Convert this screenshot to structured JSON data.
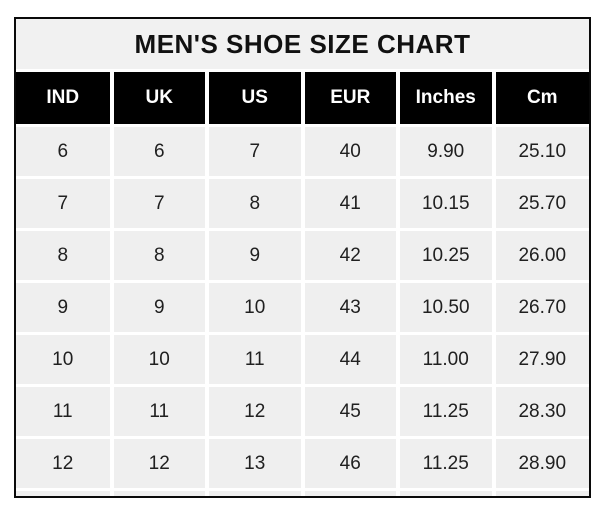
{
  "title": "MEN'S SHOE SIZE CHART",
  "colors": {
    "outer_border": "#0a0a0a",
    "title_bg": "#f1f1f1",
    "header_bg": "#000000",
    "header_text": "#ffffff",
    "cell_bg": "#efefef",
    "gridline": "#ffffff",
    "cell_text": "#202020"
  },
  "chart_data": {
    "type": "table",
    "title": "MEN'S SHOE SIZE CHART",
    "columns": [
      "IND",
      "UK",
      "US",
      "EUR",
      "Inches",
      "Cm"
    ],
    "rows": [
      [
        "6",
        "6",
        "7",
        "40",
        "9.90",
        "25.10"
      ],
      [
        "7",
        "7",
        "8",
        "41",
        "10.15",
        "25.70"
      ],
      [
        "8",
        "8",
        "9",
        "42",
        "10.25",
        "26.00"
      ],
      [
        "9",
        "9",
        "10",
        "43",
        "10.50",
        "26.70"
      ],
      [
        "10",
        "10",
        "11",
        "44",
        "11.00",
        "27.90"
      ],
      [
        "11",
        "11",
        "12",
        "45",
        "11.25",
        "28.30"
      ],
      [
        "12",
        "12",
        "13",
        "46",
        "11.25",
        "28.90"
      ]
    ]
  }
}
